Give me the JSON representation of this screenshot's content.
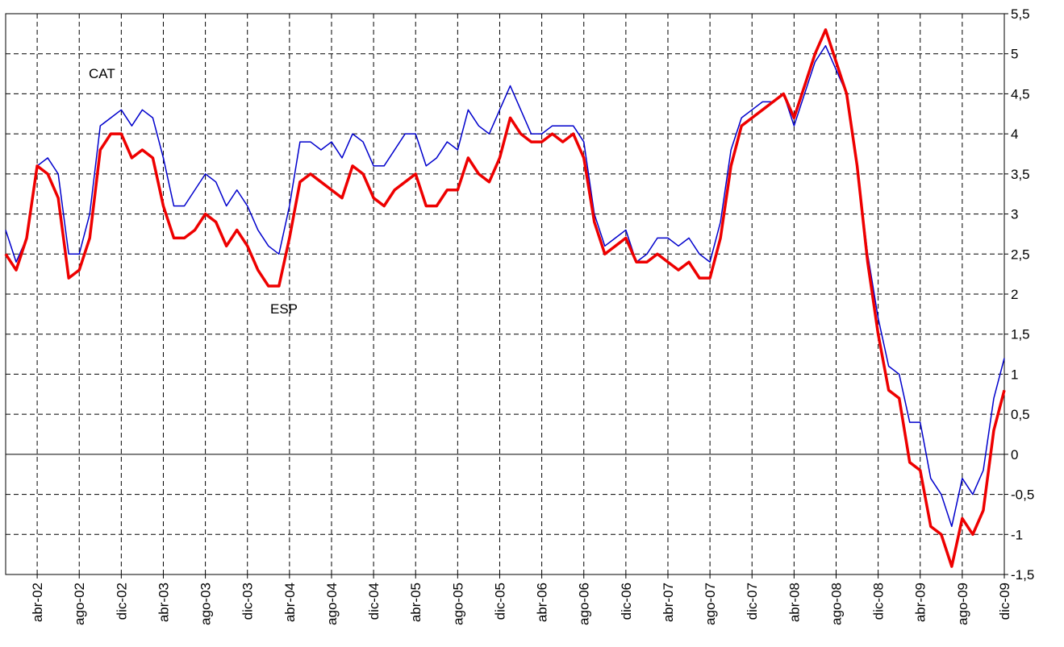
{
  "chart_data": {
    "type": "line",
    "categories": [
      null,
      null,
      null,
      "abr-02",
      null,
      null,
      null,
      "ago-02",
      null,
      null,
      null,
      "dic-02",
      null,
      null,
      null,
      "abr-03",
      null,
      null,
      null,
      "ago-03",
      null,
      null,
      null,
      "dic-03",
      null,
      null,
      null,
      "abr-04",
      null,
      null,
      null,
      "ago-04",
      null,
      null,
      null,
      "dic-04",
      null,
      null,
      null,
      "abr-05",
      null,
      null,
      null,
      "ago-05",
      null,
      null,
      null,
      "dic-05",
      null,
      null,
      null,
      "abr-06",
      null,
      null,
      null,
      "ago-06",
      null,
      null,
      null,
      "dic-06",
      null,
      null,
      null,
      "abr-07",
      null,
      null,
      null,
      "ago-07",
      null,
      null,
      null,
      "dic-07",
      null,
      null,
      null,
      "abr-08",
      null,
      null,
      null,
      "ago-08",
      null,
      null,
      null,
      "dic-08",
      null,
      null,
      null,
      "abr-09",
      null,
      null,
      null,
      "ago-09",
      null,
      null,
      null,
      "dic-09"
    ],
    "series": [
      {
        "name": "CAT",
        "color": "#0000cc",
        "values": [
          2.8,
          2.4,
          2.7,
          3.6,
          3.7,
          3.5,
          2.5,
          2.5,
          3.0,
          4.1,
          4.2,
          4.3,
          4.1,
          4.3,
          4.2,
          3.7,
          3.1,
          3.1,
          3.3,
          3.5,
          3.4,
          3.1,
          3.3,
          3.1,
          2.8,
          2.6,
          2.5,
          3.1,
          3.9,
          3.9,
          3.8,
          3.9,
          3.7,
          4.0,
          3.9,
          3.6,
          3.6,
          3.8,
          4.0,
          4.0,
          3.6,
          3.7,
          3.9,
          3.8,
          4.3,
          4.1,
          4.0,
          4.3,
          4.6,
          4.3,
          4.0,
          4.0,
          4.1,
          4.1,
          4.1,
          3.9,
          3.0,
          2.6,
          2.7,
          2.8,
          2.4,
          2.5,
          2.7,
          2.7,
          2.6,
          2.7,
          2.5,
          2.4,
          2.9,
          3.8,
          4.2,
          4.3,
          4.4,
          4.4,
          4.5,
          4.1,
          4.5,
          4.9,
          5.1,
          4.8,
          4.5,
          3.6,
          2.5,
          1.7,
          1.1,
          1.0,
          0.4,
          0.4,
          -0.3,
          -0.5,
          -0.9,
          -0.3,
          -0.5,
          -0.2,
          0.7,
          1.2
        ]
      },
      {
        "name": "ESP",
        "color": "#ee0000",
        "values": [
          2.5,
          2.3,
          2.7,
          3.6,
          3.5,
          3.2,
          2.2,
          2.3,
          2.7,
          3.8,
          4.0,
          4.0,
          3.7,
          3.8,
          3.7,
          3.1,
          2.7,
          2.7,
          2.8,
          3.0,
          2.9,
          2.6,
          2.8,
          2.6,
          2.3,
          2.1,
          2.1,
          2.7,
          3.4,
          3.5,
          3.4,
          3.3,
          3.2,
          3.6,
          3.5,
          3.2,
          3.1,
          3.3,
          3.4,
          3.5,
          3.1,
          3.1,
          3.3,
          3.3,
          3.7,
          3.5,
          3.4,
          3.7,
          4.2,
          4.0,
          3.9,
          3.9,
          4.0,
          3.9,
          4.0,
          3.7,
          2.9,
          2.5,
          2.6,
          2.7,
          2.4,
          2.4,
          2.5,
          2.4,
          2.3,
          2.4,
          2.2,
          2.2,
          2.7,
          3.6,
          4.1,
          4.2,
          4.3,
          4.4,
          4.5,
          4.2,
          4.6,
          5.0,
          5.3,
          4.9,
          4.5,
          3.6,
          2.4,
          1.5,
          0.8,
          0.7,
          -0.1,
          -0.2,
          -0.9,
          -1.0,
          -1.4,
          -0.8,
          -1.0,
          -0.7,
          0.3,
          0.8
        ]
      }
    ],
    "ylim": [
      -1.5,
      5.5
    ],
    "yticks": [
      {
        "value": -1.5,
        "label": "-1,5"
      },
      -1,
      {
        "value": -0.5,
        "label": "-0,5"
      },
      0,
      {
        "value": 0.5,
        "label": "0,5"
      },
      1,
      {
        "value": 1.5,
        "label": "1,5"
      },
      2,
      {
        "value": 2.5,
        "label": "2,5"
      },
      3,
      {
        "value": 3.5,
        "label": "3,5"
      },
      4,
      {
        "value": 4.5,
        "label": "4,5"
      },
      5,
      {
        "value": 5.5,
        "label": "5,5"
      }
    ],
    "grid": true
  }
}
